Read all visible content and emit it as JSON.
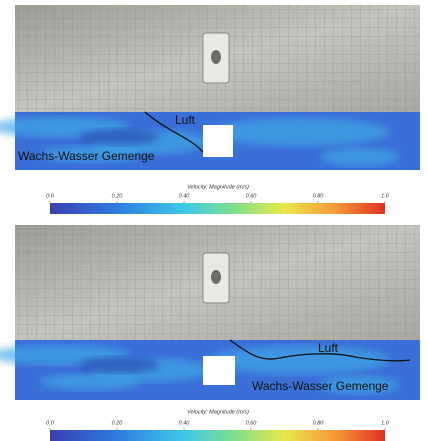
{
  "panels": [
    {
      "labels": {
        "air": "Luft",
        "mixture": "Wachs-Wasser Gemenge"
      },
      "colorbar": {
        "title": "Velocity: Magnitude (m/s)",
        "lim": [
          0,
          1
        ],
        "ticks": [
          {
            "value": 0,
            "label": "0.0"
          },
          {
            "value": 0.2,
            "label": "0.20"
          },
          {
            "value": 0.4,
            "label": "0.40"
          },
          {
            "value": 0.6,
            "label": "0.60"
          },
          {
            "value": 0.8,
            "label": "0.80"
          },
          {
            "value": 1,
            "label": "1.0"
          }
        ]
      }
    },
    {
      "labels": {
        "air": "Luft",
        "mixture": "Wachs-Wasser Gemenge"
      },
      "colorbar": {
        "title": "Velocity: Magnitude (m/s)",
        "lim": [
          0,
          1
        ],
        "ticks": [
          {
            "value": 0,
            "label": "0.0"
          },
          {
            "value": 0.2,
            "label": "0.20"
          },
          {
            "value": 0.4,
            "label": "0.40"
          },
          {
            "value": 0.6,
            "label": "0.60"
          },
          {
            "value": 0.8,
            "label": "0.80"
          },
          {
            "value": 1,
            "label": "1.0"
          }
        ]
      }
    }
  ]
}
